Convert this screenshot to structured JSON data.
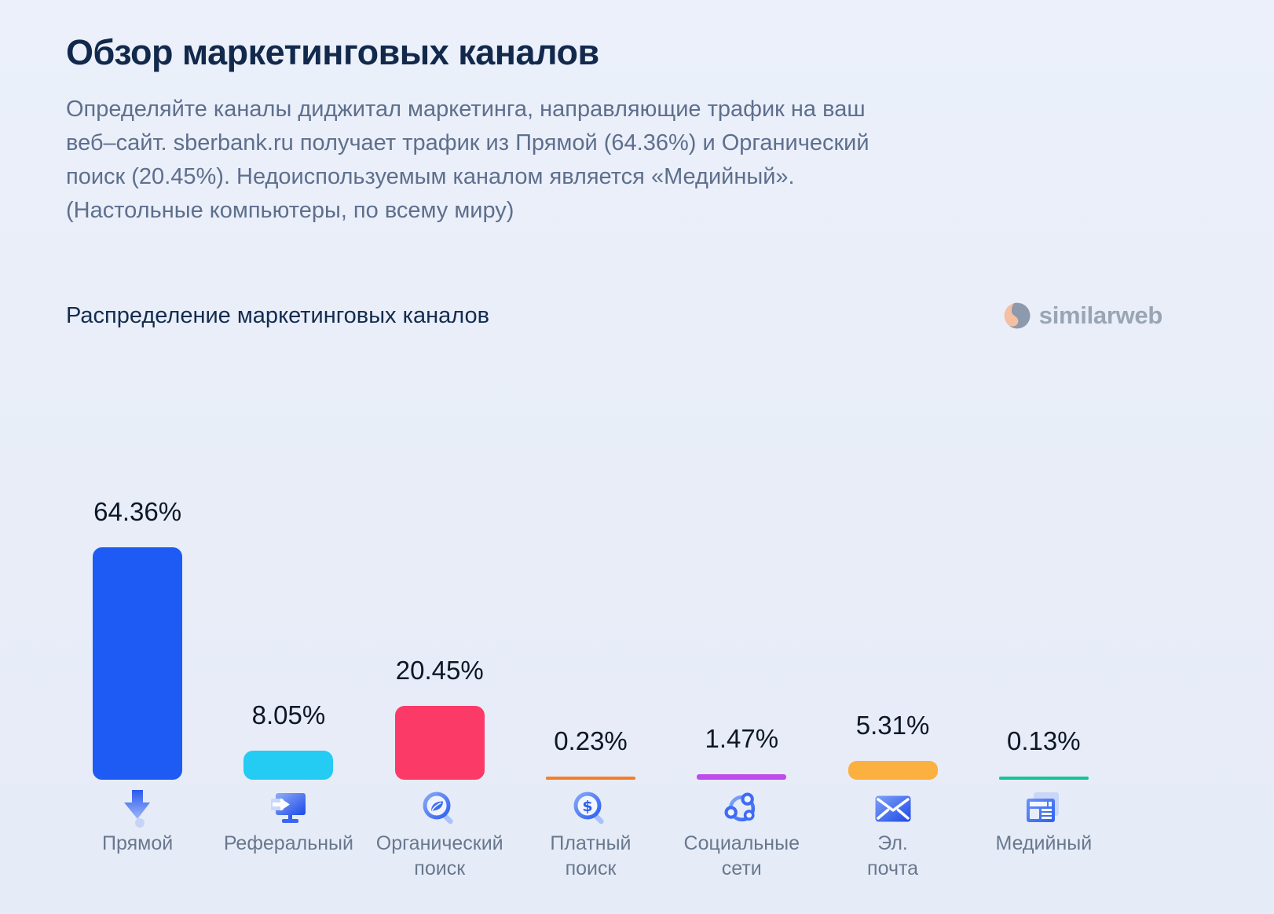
{
  "page": {
    "title": "Обзор маркетинговых каналов",
    "description_lines": [
      "Определяйте каналы диджитал маркетинга, направляющие трафик на ваш",
      "веб–сайт. sberbank.ru получает трафик из Прямой (64.36%) и Органический",
      "поиск (20.45%). Недоиспользуемым каналом является «Медийный».",
      "(Настольные компьютеры, по всему миру)"
    ]
  },
  "chart_header": {
    "title": "Распределение маркетинговых каналов",
    "brand": "similarweb"
  },
  "chart_data": {
    "type": "bar",
    "title": "Распределение маркетинговых каналов",
    "unit": "%",
    "ylim": [
      0,
      70
    ],
    "grid": false,
    "legend": "none",
    "categories": [
      "Прямой",
      "Реферальный",
      "Органический поиск",
      "Платный поиск",
      "Социальные сети",
      "Эл. почта",
      "Медийный"
    ],
    "values": [
      64.36,
      8.05,
      20.45,
      0.23,
      1.47,
      5.31,
      0.13
    ],
    "channels": [
      {
        "slug": "direct",
        "label_lines": [
          "Прямой"
        ],
        "value": 64.36,
        "value_label": "64.36%",
        "color": "#1E5BF5",
        "icon": "direct-arrow-icon"
      },
      {
        "slug": "referral",
        "label_lines": [
          "Реферальный"
        ],
        "value": 8.05,
        "value_label": "8.05%",
        "color": "#24CBF2",
        "icon": "referral-monitor-icon"
      },
      {
        "slug": "organic-search",
        "label_lines": [
          "Органический",
          "поиск"
        ],
        "value": 20.45,
        "value_label": "20.45%",
        "color": "#FB3A68",
        "icon": "organic-search-leaf-icon"
      },
      {
        "slug": "paid-search",
        "label_lines": [
          "Платный",
          "поиск"
        ],
        "value": 0.23,
        "value_label": "0.23%",
        "color": "#F87D28",
        "icon": "paid-search-dollar-icon"
      },
      {
        "slug": "social",
        "label_lines": [
          "Социальные",
          "сети"
        ],
        "value": 1.47,
        "value_label": "1.47%",
        "color": "#BE4BEC",
        "icon": "social-network-icon"
      },
      {
        "slug": "email",
        "label_lines": [
          "Эл.",
          "почта"
        ],
        "value": 5.31,
        "value_label": "5.31%",
        "color": "#FBB03F",
        "icon": "email-envelope-icon"
      },
      {
        "slug": "display",
        "label_lines": [
          "Медийный"
        ],
        "value": 0.13,
        "value_label": "0.13%",
        "color": "#12C695",
        "icon": "display-ads-icon"
      }
    ]
  },
  "colors": {
    "background": "#E9EEF8",
    "title_text": "#12294C",
    "body_text": "#5E6F8D",
    "value_text": "#0D1726",
    "label_text": "#68788F",
    "brand_text": "#99A5B5",
    "brand_icon_gray": "#8D99AC",
    "brand_icon_peach": "#F5BFA4"
  }
}
